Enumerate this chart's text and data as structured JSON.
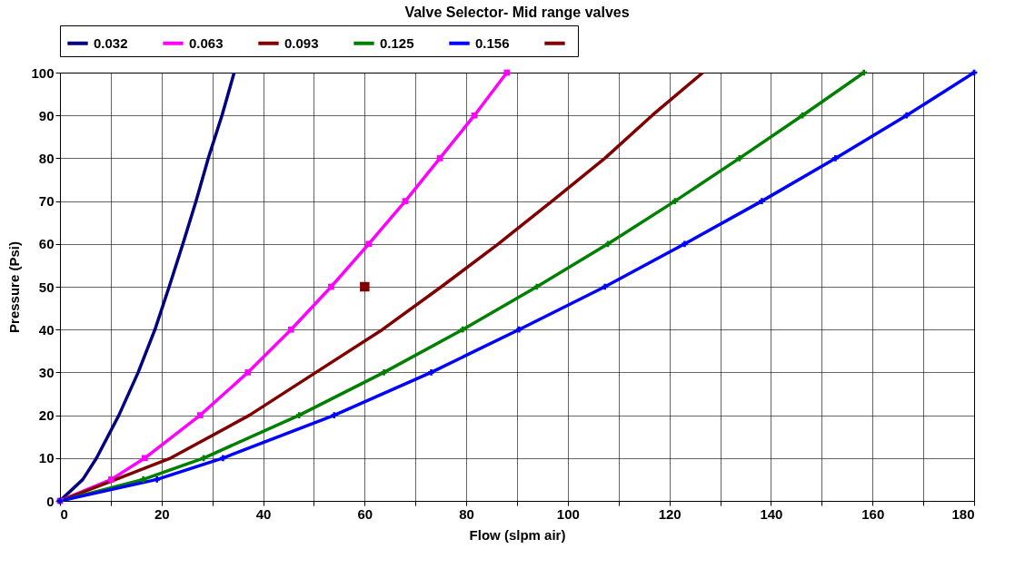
{
  "chart_data": {
    "type": "line",
    "title": "Valve Selector- Mid range valves",
    "xlabel": "Flow (slpm air)",
    "ylabel": "Pressure (Psi)",
    "xlim": [
      0,
      180
    ],
    "ylim": [
      0,
      100
    ],
    "xticks": [
      0,
      {
        "value": 10,
        "label": null
      },
      20,
      {
        "value": 30,
        "label": null
      },
      40,
      {
        "value": 50,
        "label": null
      },
      60,
      {
        "value": 70,
        "label": null
      },
      80,
      {
        "value": 90,
        "label": null
      },
      100,
      {
        "value": 110,
        "label": null
      },
      120,
      {
        "value": 130,
        "label": null
      },
      140,
      {
        "value": 150,
        "label": null
      },
      160,
      {
        "value": 170,
        "label": null
      },
      180
    ],
    "yticks": [
      0,
      10,
      20,
      30,
      40,
      50,
      60,
      70,
      80,
      90,
      100
    ],
    "grid": true,
    "legend": "top",
    "line_style": "solid",
    "series": [
      {
        "name": "0.032",
        "color": "#000080",
        "marker": "none",
        "x": [
          0,
          4.5,
          7.2,
          11.6,
          15.4,
          18.7,
          21.5,
          24.2,
          26.8,
          29.2,
          31.9,
          34.3
        ],
        "values": [
          0,
          5,
          10,
          20,
          30,
          40,
          50,
          60,
          70,
          80,
          90,
          100
        ]
      },
      {
        "name": "0.063",
        "color": "#ff00ff",
        "marker": "square",
        "x": [
          0,
          10.1,
          16.7,
          27.6,
          37.0,
          45.5,
          53.4,
          60.8,
          68.0,
          74.8,
          81.6,
          88.0
        ],
        "values": [
          0,
          5,
          10,
          20,
          30,
          40,
          50,
          60,
          70,
          80,
          90,
          100
        ]
      },
      {
        "name": "0.093",
        "color": "#800000",
        "marker": "none",
        "x": [
          0,
          11,
          21.8,
          37.3,
          50.4,
          63.5,
          75.1,
          86.3,
          96.9,
          107.3,
          116.6,
          126.6
        ],
        "values": [
          0,
          5,
          10,
          20,
          30,
          40,
          50,
          60,
          70,
          80,
          90,
          100
        ]
      },
      {
        "name": "0.125",
        "color": "#008000",
        "marker": "cross",
        "x": [
          0,
          16.4,
          28.3,
          47.1,
          63.8,
          79.3,
          93.9,
          107.9,
          121.1,
          133.8,
          146.2,
          158.3
        ],
        "values": [
          0,
          5,
          10,
          20,
          30,
          40,
          50,
          60,
          70,
          80,
          90,
          100
        ]
      },
      {
        "name": "0.156",
        "color": "#0000ff",
        "marker": "cross",
        "x": [
          0,
          19.1,
          32.1,
          54.0,
          73.1,
          90.4,
          107.3,
          123.0,
          138.2,
          152.7,
          166.7,
          180
        ],
        "values": [
          0,
          5,
          10,
          20,
          30,
          40,
          50,
          60,
          70,
          80,
          90,
          100
        ]
      },
      {
        "type": "scatter",
        "color": "#800000",
        "marker": "square",
        "x": [
          60
        ],
        "values": [
          50
        ]
      }
    ]
  }
}
